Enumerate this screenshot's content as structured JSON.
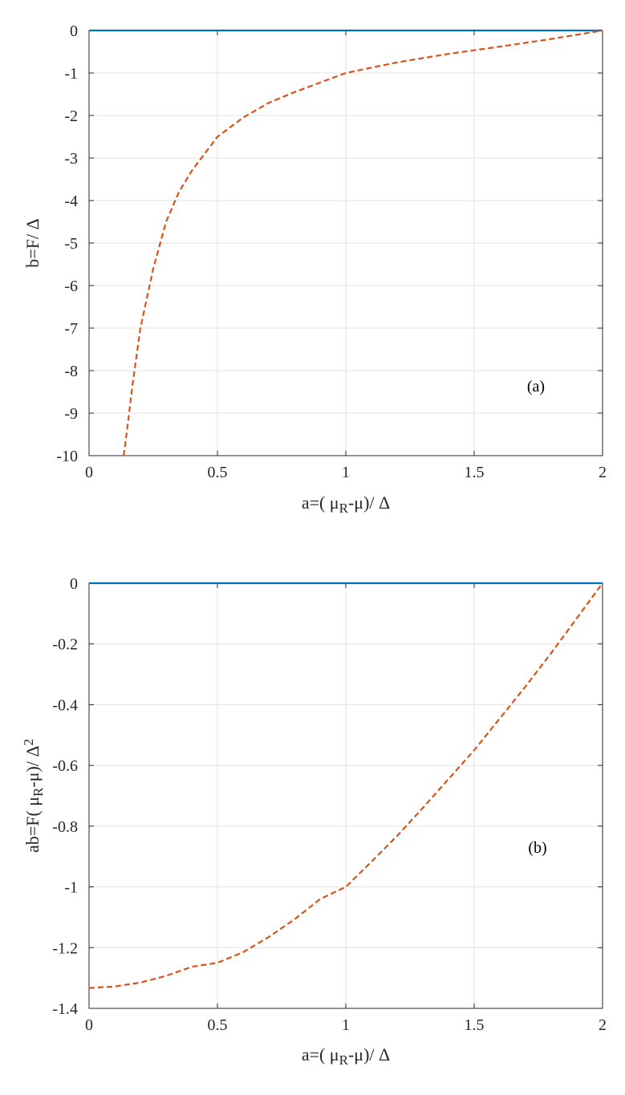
{
  "chart_data": [
    {
      "type": "line",
      "panel_label": "(a)",
      "xlabel": "a=(  μR-μ)/ Δ",
      "ylabel": "b=F/  Δ",
      "xlim": [
        0,
        2
      ],
      "ylim": [
        -10,
        0
      ],
      "x_ticks": [
        "0",
        "0.5",
        "1",
        "1.5",
        "2"
      ],
      "y_ticks": [
        "0",
        "-1",
        "-2",
        "-3",
        "-4",
        "-5",
        "-6",
        "-7",
        "-8",
        "-9",
        "-10"
      ],
      "grid": true,
      "series": [
        {
          "style": "solid",
          "color": "#0072BD",
          "x": [
            0,
            0.5,
            1,
            1.5,
            2
          ],
          "y": [
            0,
            0,
            0,
            0,
            0
          ]
        },
        {
          "style": "dashed",
          "color": "#D95319",
          "x": [
            0.135,
            0.15,
            0.17,
            0.2,
            0.25,
            0.3,
            0.35,
            0.4,
            0.5,
            0.6,
            0.7,
            0.8,
            1,
            1.2,
            1.4,
            1.6,
            1.8,
            2
          ],
          "y": [
            -10,
            -9.3,
            -8.3,
            -7,
            -5.6,
            -4.5,
            -3.8,
            -3.3,
            -2.5,
            -2.05,
            -1.7,
            -1.45,
            -1,
            -0.75,
            -0.55,
            -0.38,
            -0.2,
            0
          ]
        }
      ]
    },
    {
      "type": "line",
      "panel_label": "(b)",
      "xlabel": "a=(  μR-μ)/ Δ",
      "ylabel": "ab=F(  μR-μ)/ Δ2",
      "xlim": [
        0,
        2
      ],
      "ylim": [
        -1.4,
        0
      ],
      "x_ticks": [
        "0",
        "0.5",
        "1",
        "1.5",
        "2"
      ],
      "y_ticks": [
        "0",
        "-0.2",
        "-0.4",
        "-0.6",
        "-0.8",
        "-1",
        "-1.2",
        "-1.4"
      ],
      "grid": true,
      "series": [
        {
          "style": "solid",
          "color": "#0072BD",
          "x": [
            0,
            0.5,
            1,
            1.5,
            2
          ],
          "y": [
            0,
            0,
            0,
            0,
            0
          ]
        },
        {
          "style": "dashed",
          "color": "#D95319",
          "x": [
            0,
            0.1,
            0.2,
            0.3,
            0.4,
            0.5,
            0.6,
            0.7,
            0.8,
            0.9,
            1,
            1.1,
            1.2,
            1.3,
            1.4,
            1.5,
            1.6,
            1.7,
            1.8,
            1.9,
            2
          ],
          "y": [
            -1.333,
            -1.328,
            -1.315,
            -1.293,
            -1.263,
            -1.25,
            -1.215,
            -1.165,
            -1.107,
            -1.04,
            -1,
            -0.917,
            -0.832,
            -0.74,
            -0.645,
            -0.55,
            -0.445,
            -0.34,
            -0.23,
            -0.115,
            0
          ]
        }
      ]
    }
  ]
}
